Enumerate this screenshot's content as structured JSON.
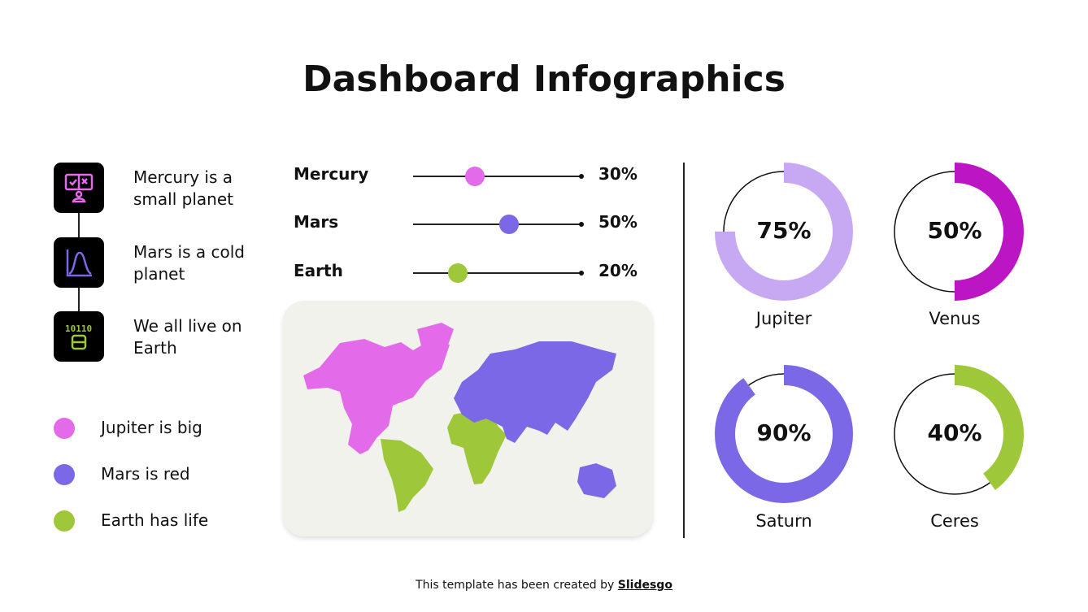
{
  "title": "Dashboard Infographics",
  "steps": [
    {
      "text": "Mercury is a small planet",
      "icon": "feedback-person-icon",
      "color": "#e36ae8"
    },
    {
      "text": "Mars is a cold planet",
      "icon": "bell-curve-chart-icon",
      "color": "#7b68e6"
    },
    {
      "text": "We all live on Earth",
      "icon": "binary-data-icon",
      "color": "#9ec73a",
      "icon_text": "10110"
    }
  ],
  "legend": [
    {
      "text": "Jupiter is big",
      "color": "#e36ae8"
    },
    {
      "text": "Mars is red",
      "color": "#7b68e6"
    },
    {
      "text": "Earth has life",
      "color": "#9ec73a"
    }
  ],
  "sliders": [
    {
      "label": "Mercury",
      "value": 30,
      "display": "30%",
      "color": "#e36ae8"
    },
    {
      "label": "Mars",
      "value": 50,
      "display": "50%",
      "color": "#7b68e6"
    },
    {
      "label": "Earth",
      "value": 20,
      "display": "20%",
      "color": "#9ec73a"
    }
  ],
  "donuts": [
    {
      "name": "Jupiter",
      "value": 75,
      "display": "75%",
      "color": "#c6a9f2"
    },
    {
      "name": "Venus",
      "value": 50,
      "display": "50%",
      "color": "#bb15c4"
    },
    {
      "name": "Saturn",
      "value": 90,
      "display": "90%",
      "color": "#7b68e6"
    },
    {
      "name": "Ceres",
      "value": 40,
      "display": "40%",
      "color": "#9ec73a"
    }
  ],
  "footer": {
    "prefix": "This template has been created by ",
    "brand": "Slidesgo"
  }
}
